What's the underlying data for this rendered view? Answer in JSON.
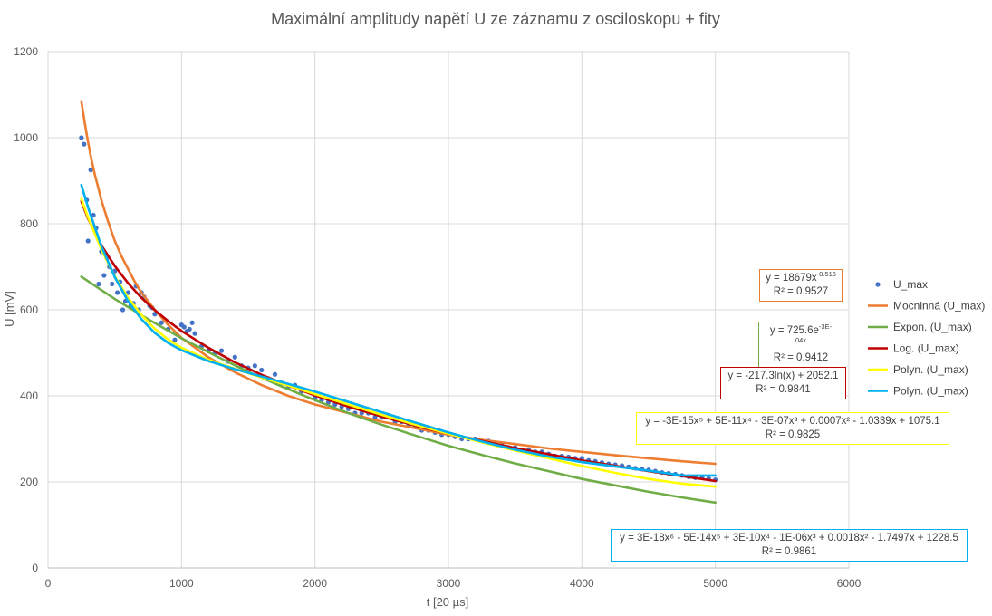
{
  "chart_data": {
    "type": "scatter",
    "title": "Maximální amplitudy napětí U ze záznamu z osciloskopu + fity",
    "xlabel": "t [20 µs]",
    "ylabel": "U [mV]",
    "xlim": [
      0,
      6000
    ],
    "ylim": [
      0,
      1200
    ],
    "xticks": [
      "0",
      "1000",
      "2000",
      "3000",
      "4000",
      "5000",
      "6000"
    ],
    "yticks": [
      "0",
      "200",
      "400",
      "600",
      "800",
      "1000",
      "1200"
    ],
    "grid": true,
    "legend_position": "right",
    "series": [
      {
        "name": "U_max",
        "kind": "scatter",
        "color": "#4472C4",
        "x": [
          250,
          270,
          290,
          300,
          320,
          340,
          360,
          380,
          400,
          420,
          440,
          460,
          480,
          500,
          520,
          540,
          560,
          580,
          600,
          620,
          640,
          660,
          680,
          700,
          720,
          740,
          760,
          780,
          800,
          850,
          900,
          950,
          1000,
          1020,
          1040,
          1060,
          1080,
          1100,
          1150,
          1200,
          1250,
          1300,
          1350,
          1400,
          1450,
          1500,
          1550,
          1600,
          1650,
          1700,
          1750,
          1800,
          1850,
          1900,
          1950,
          2000,
          2050,
          2100,
          2150,
          2200,
          2250,
          2300,
          2350,
          2400,
          2450,
          2500,
          2550,
          2600,
          2650,
          2700,
          2750,
          2800,
          2850,
          2900,
          2950,
          3000,
          3050,
          3100,
          3150,
          3200,
          3250,
          3300,
          3350,
          3400,
          3450,
          3500,
          3550,
          3600,
          3650,
          3700,
          3750,
          3800,
          3850,
          3900,
          3950,
          4000,
          4050,
          4100,
          4150,
          4200,
          4250,
          4300,
          4350,
          4400,
          4450,
          4500,
          4550,
          4600,
          4650,
          4700,
          4750,
          4800,
          4850,
          4900,
          4950,
          5000
        ],
        "y": [
          1000,
          985,
          855,
          760,
          925,
          820,
          790,
          660,
          735,
          680,
          720,
          700,
          660,
          690,
          640,
          665,
          600,
          620,
          640,
          610,
          615,
          655,
          600,
          640,
          630,
          620,
          610,
          605,
          590,
          570,
          555,
          530,
          565,
          560,
          550,
          555,
          570,
          545,
          515,
          505,
          500,
          505,
          480,
          490,
          470,
          465,
          470,
          460,
          440,
          450,
          430,
          420,
          425,
          410,
          410,
          395,
          390,
          385,
          380,
          375,
          370,
          360,
          360,
          360,
          350,
          350,
          355,
          340,
          340,
          330,
          330,
          320,
          320,
          315,
          310,
          310,
          305,
          300,
          300,
          300,
          295,
          295,
          290,
          285,
          280,
          280,
          275,
          275,
          270,
          270,
          265,
          260,
          260,
          258,
          255,
          255,
          250,
          248,
          245,
          242,
          240,
          238,
          235,
          232,
          230,
          228,
          225,
          222,
          220,
          218,
          215,
          212,
          210,
          210,
          208,
          205
        ]
      },
      {
        "name": "Mocninná (U_max)",
        "kind": "fit",
        "color": "#ED7D31",
        "x": [
          250,
          275,
          300,
          325,
          350,
          375,
          400,
          450,
          500,
          550,
          600,
          650,
          700,
          800,
          900,
          1000,
          1200,
          1400,
          1600,
          1800,
          2000,
          2250,
          2500,
          2750,
          3000,
          3250,
          3500,
          3750,
          4000,
          4250,
          4500,
          4750,
          5000
        ],
        "y": [
          1085,
          1035,
          990,
          950,
          915,
          885,
          855,
          805,
          760,
          725,
          695,
          665,
          640,
          600,
          565,
          535,
          490,
          455,
          425,
          400,
          380,
          360,
          340,
          325,
          310,
          298,
          288,
          278,
          270,
          262,
          255,
          248,
          242
        ]
      },
      {
        "name": "Expon. (U_max)",
        "kind": "fit",
        "color": "#70AD47",
        "x": [
          250,
          500,
          750,
          1000,
          1250,
          1500,
          1750,
          2000,
          2250,
          2500,
          2750,
          3000,
          3250,
          3500,
          3750,
          4000,
          4250,
          4500,
          4750,
          5000
        ],
        "y": [
          677,
          625,
          578,
          534,
          494,
          456,
          422,
          390,
          360,
          333,
          308,
          284,
          263,
          243,
          225,
          207,
          192,
          177,
          164,
          152
        ]
      },
      {
        "name": "Log. (U_max)",
        "kind": "fit",
        "color": "#C00000",
        "x": [
          250,
          300,
          400,
          500,
          600,
          700,
          800,
          900,
          1000,
          1200,
          1400,
          1600,
          1800,
          2000,
          2250,
          2500,
          2750,
          3000,
          3500,
          4000,
          4500,
          5000
        ],
        "y": [
          852,
          812,
          750,
          702,
          662,
          628,
          599,
          574,
          551,
          512,
          478,
          449,
          424,
          401,
          375,
          352,
          331,
          312,
          279,
          250,
          225,
          202
        ]
      },
      {
        "name": "Polyn. (U_max)",
        "kind": "fit",
        "color": "#FFFF00",
        "x": [
          250,
          300,
          400,
          500,
          600,
          700,
          800,
          900,
          1000,
          1200,
          1400,
          1600,
          1800,
          2000,
          2250,
          2500,
          2750,
          3000,
          3250,
          3500,
          3750,
          4000,
          4250,
          4500,
          4750,
          5000
        ],
        "y": [
          858,
          815,
          740,
          678,
          628,
          588,
          556,
          531,
          512,
          484,
          463,
          443,
          424,
          404,
          380,
          356,
          333,
          312,
          292,
          273,
          255,
          237,
          221,
          207,
          196,
          189
        ]
      },
      {
        "name": "Polyn. (U_max)",
        "kind": "fit",
        "color": "#00B0F0",
        "x": [
          250,
          300,
          400,
          500,
          600,
          700,
          800,
          900,
          1000,
          1200,
          1400,
          1600,
          1800,
          2000,
          2250,
          2500,
          2750,
          3000,
          3250,
          3500,
          3750,
          4000,
          4250,
          4500,
          4750,
          5000
        ],
        "y": [
          890,
          838,
          748,
          676,
          620,
          578,
          546,
          523,
          506,
          481,
          462,
          445,
          428,
          410,
          386,
          362,
          338,
          315,
          294,
          275,
          259,
          246,
          236,
          226,
          215,
          215
        ]
      }
    ],
    "annotations": [
      {
        "id": "eq-power",
        "color": "#ED7D31",
        "base": "y = 18679x",
        "sup": "-0.516",
        "tail": "",
        "r2": "R² = 0.9527"
      },
      {
        "id": "eq-exp",
        "color": "#70AD47",
        "base": "y = 725.6e",
        "sup": "-3E-04x",
        "tail": "",
        "r2": "R² = 0.9412"
      },
      {
        "id": "eq-log",
        "color": "#C00000",
        "base": "y = -217.3ln(x) + 2052.1",
        "sup": "",
        "tail": "",
        "r2": "R² = 0.9841"
      },
      {
        "id": "eq-poly5",
        "color": "#FFFF00",
        "base": "y = -3E-15x⁵ + 5E-11x⁴ - 3E-07x³ + 0.0007x² - 1.0339x + 1075.1",
        "sup": "",
        "tail": "",
        "r2": "R² = 0.9825"
      },
      {
        "id": "eq-poly6",
        "color": "#00B0F0",
        "base": "y = 3E-18x⁶ - 5E-14x⁵ + 3E-10x⁴ - 1E-06x³ + 0.0018x² - 1.7497x + 1228.5",
        "sup": "",
        "tail": "",
        "r2": "R² = 0.9861"
      }
    ]
  }
}
